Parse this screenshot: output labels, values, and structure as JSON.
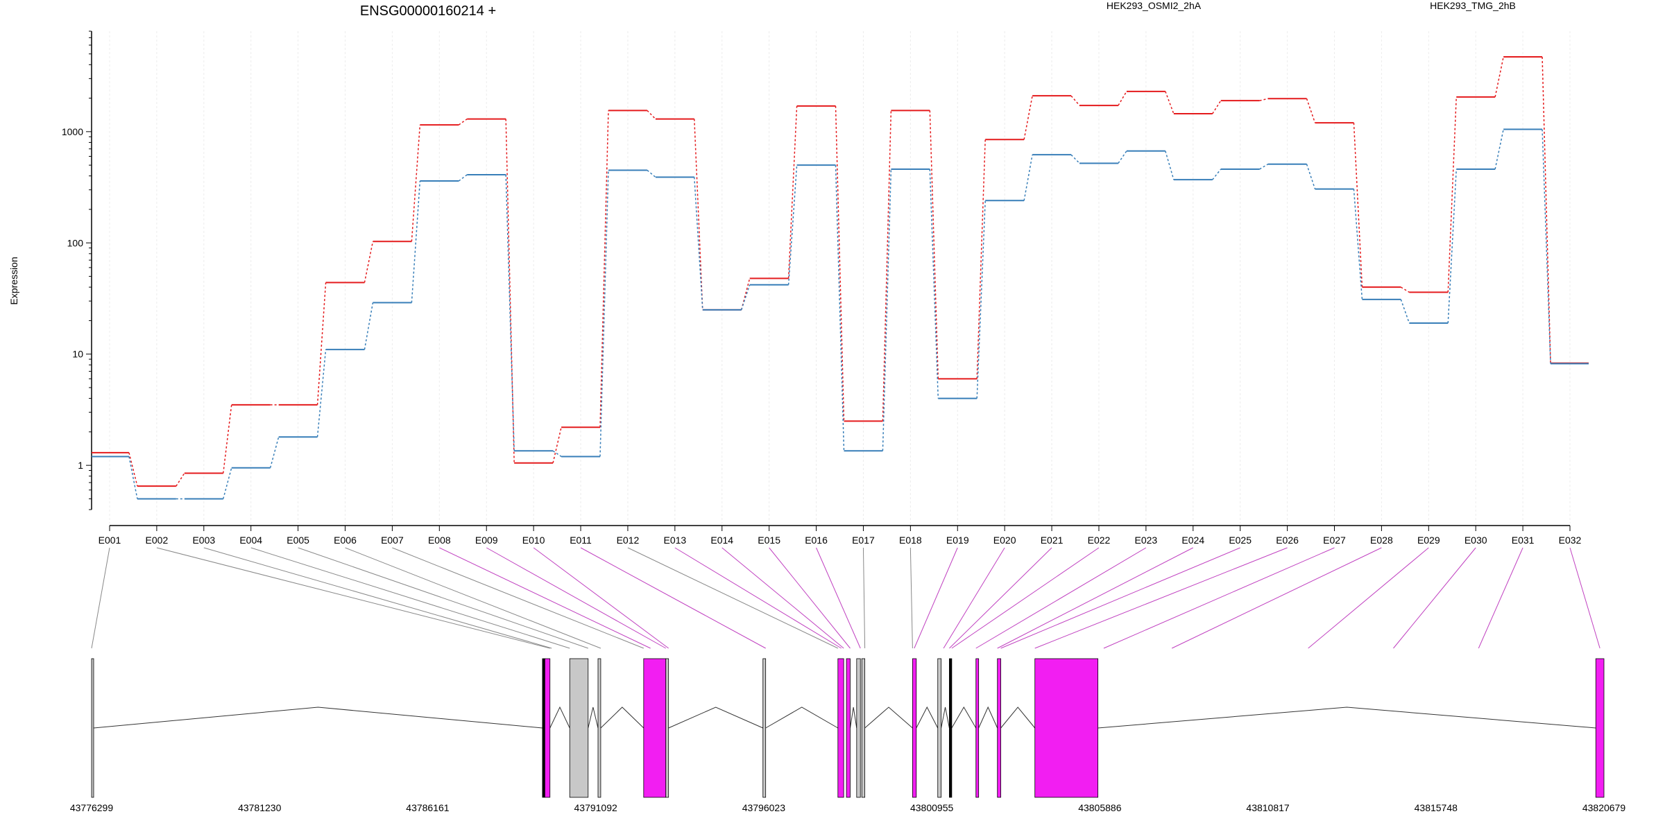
{
  "chart_data": {
    "type": "line",
    "title": "ENSG00000160214 +",
    "ylabel": "Expression",
    "xlabel": "",
    "yscale": "log",
    "ylim": [
      0.4,
      8000
    ],
    "y_ticks": [
      1,
      10,
      100,
      1000
    ],
    "y_tick_labels": [
      "1",
      "10",
      "100",
      "1000"
    ],
    "grid": "vertical",
    "legend_placement": "top-right",
    "categories": [
      "E001",
      "E002",
      "E003",
      "E004",
      "E005",
      "E006",
      "E007",
      "E008",
      "E009",
      "E010",
      "E011",
      "E012",
      "E013",
      "E014",
      "E015",
      "E016",
      "E017",
      "E018",
      "E019",
      "E020",
      "E021",
      "E022",
      "E023",
      "E024",
      "E025",
      "E026",
      "E027",
      "E028",
      "E029",
      "E030",
      "E031",
      "E032"
    ],
    "series": [
      {
        "name": "HEK293_OSMI2_2hA",
        "color": "#e41a1c",
        "values": [
          1.3,
          0.65,
          0.85,
          3.5,
          3.5,
          44,
          103,
          1150,
          1300,
          1.05,
          2.2,
          1550,
          1300,
          25,
          48,
          1700,
          2.5,
          1550,
          6,
          850,
          2100,
          1720,
          2300,
          1450,
          1900,
          1980,
          1200,
          40,
          36,
          2050,
          4700,
          8.3
        ]
      },
      {
        "name": "HEK293_TMG_2hB",
        "color": "#377eb8",
        "values": [
          1.2,
          0.5,
          0.5,
          0.95,
          1.8,
          11,
          29,
          360,
          410,
          1.35,
          1.2,
          450,
          390,
          25,
          42,
          500,
          1.35,
          460,
          4,
          240,
          620,
          520,
          670,
          370,
          460,
          510,
          305,
          31,
          19,
          460,
          1050,
          8.2
        ]
      }
    ],
    "genomic_axis": {
      "ticks": [
        43776299,
        43781230,
        43786161,
        43791092,
        43796023,
        43800955,
        43805886,
        43810817,
        43815748,
        43820679
      ],
      "tick_labels": [
        "43776299",
        "43781230",
        "43786161",
        "43791092",
        "43796023",
        "43800955",
        "43805886",
        "43810817",
        "43815748",
        "43820679"
      ],
      "range": [
        43776299,
        43820679
      ]
    },
    "exon_track": {
      "highlight_color": "#f21ef2",
      "normal_color": "#c8c8c8",
      "blocks": [
        {
          "start": 43776299,
          "end": 43776340,
          "fill": "normal"
        },
        {
          "start": 43789530,
          "end": 43789600,
          "fill": "dark"
        },
        {
          "start": 43789600,
          "end": 43789750,
          "fill": "highlight"
        },
        {
          "start": 43790330,
          "end": 43790870,
          "fill": "normal"
        },
        {
          "start": 43791160,
          "end": 43791240,
          "fill": "normal"
        },
        {
          "start": 43792500,
          "end": 43793150,
          "fill": "highlight"
        },
        {
          "start": 43793150,
          "end": 43793230,
          "fill": "normal"
        },
        {
          "start": 43796000,
          "end": 43796080,
          "fill": "normal"
        },
        {
          "start": 43798200,
          "end": 43798370,
          "fill": "highlight"
        },
        {
          "start": 43798450,
          "end": 43798560,
          "fill": "highlight"
        },
        {
          "start": 43798750,
          "end": 43798860,
          "fill": "normal"
        },
        {
          "start": 43798900,
          "end": 43798990,
          "fill": "normal"
        },
        {
          "start": 43800390,
          "end": 43800500,
          "fill": "highlight"
        },
        {
          "start": 43801130,
          "end": 43801230,
          "fill": "normal"
        },
        {
          "start": 43801470,
          "end": 43801540,
          "fill": "dark"
        },
        {
          "start": 43802250,
          "end": 43802330,
          "fill": "highlight"
        },
        {
          "start": 43802880,
          "end": 43802980,
          "fill": "highlight"
        },
        {
          "start": 43803980,
          "end": 43805830,
          "fill": "highlight"
        },
        {
          "start": 43820440,
          "end": 43820679,
          "fill": "highlight"
        }
      ],
      "connector_positions": [
        43776299,
        43789750,
        43789800,
        43790330,
        43790870,
        43791240,
        43792500,
        43792700,
        43793150,
        43793230,
        43796080,
        43798200,
        43798300,
        43798370,
        43798560,
        43798860,
        43798990,
        43800390,
        43800440,
        43801300,
        43801470,
        43801540,
        43802250,
        43802880,
        43802980,
        43803980,
        43806000,
        43808000,
        43812000,
        43814500,
        43817000,
        43820560
      ],
      "connector_highlight": [
        false,
        false,
        false,
        false,
        false,
        false,
        false,
        true,
        true,
        true,
        true,
        false,
        true,
        true,
        true,
        true,
        false,
        false,
        true,
        true,
        true,
        true,
        true,
        true,
        true,
        true,
        true,
        true,
        true,
        true,
        true,
        true
      ]
    }
  }
}
